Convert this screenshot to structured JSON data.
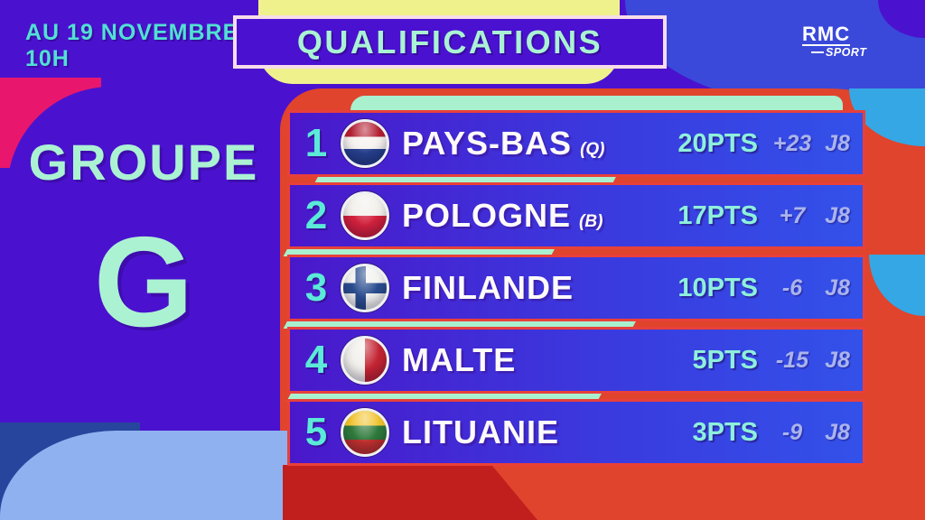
{
  "meta": {
    "date_line1": "AU 19 NOVEMBRE",
    "date_line2": "10H"
  },
  "header": {
    "title": "QUALIFICATIONS"
  },
  "brand": {
    "name": "RMC",
    "sub": "SPORT"
  },
  "group": {
    "label": "GROUPE",
    "letter": "G"
  },
  "standings": {
    "rows": [
      {
        "rank": "1",
        "team": "PAYS-BAS",
        "suffix": "(Q)",
        "flag": "netherlands",
        "points": "20PTS",
        "diff": "+23",
        "played": "J8"
      },
      {
        "rank": "2",
        "team": "POLOGNE",
        "suffix": "(B)",
        "flag": "poland",
        "points": "17PTS",
        "diff": "+7",
        "played": "J8"
      },
      {
        "rank": "3",
        "team": "FINLANDE",
        "suffix": "",
        "flag": "finland",
        "points": "10PTS",
        "diff": "-6",
        "played": "J8"
      },
      {
        "rank": "4",
        "team": "MALTE",
        "suffix": "",
        "flag": "malta",
        "points": "5PTS",
        "diff": "-15",
        "played": "J8"
      },
      {
        "rank": "5",
        "team": "LITUANIE",
        "suffix": "",
        "flag": "lithuania",
        "points": "3PTS",
        "diff": "-9",
        "played": "J8"
      }
    ]
  },
  "colors": {
    "base_purple": "#4a12cf",
    "mint": "#a9f0cf",
    "turquoise": "#52e1d3",
    "row_border_red": "#e8403a",
    "panel_red": "#e0442c",
    "dark_red": "#c11f1d",
    "magenta": "#e8176d",
    "royal_blue": "#3a49d9",
    "cyan_accent": "#35a7e4",
    "yellow": "#eff18d",
    "periwinkle": "#90b1f0",
    "navy": "#27459c",
    "points_cyan": "#8ef0dc",
    "stat_lavender": "#aab4ec"
  }
}
